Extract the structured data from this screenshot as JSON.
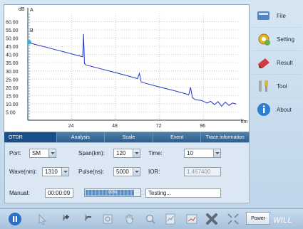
{
  "chart_data": {
    "type": "line",
    "ylabel": "dB",
    "xlabel": "km",
    "y_ticks": [
      "60.00",
      "55.00",
      "50.00",
      "45.00",
      "40.00",
      "35.00",
      "30.00",
      "25.00",
      "20.00",
      "15.00",
      "10.00",
      "5.00"
    ],
    "x_ticks": [
      "24",
      "48",
      "72",
      "96"
    ],
    "xlim": [
      0,
      115
    ],
    "ylim": [
      0,
      65
    ],
    "marker_labels": [
      "A",
      "B"
    ],
    "series": [
      {
        "values": [
          [
            0,
            47.5
          ],
          [
            2,
            46.8
          ],
          [
            5,
            45.9
          ],
          [
            10,
            44.5
          ],
          [
            15,
            43.0
          ],
          [
            20,
            41.6
          ],
          [
            24,
            40.4
          ],
          [
            28,
            39.2
          ],
          [
            30,
            38.6
          ],
          [
            30.5,
            52.5
          ],
          [
            31,
            34.5
          ],
          [
            32,
            33.5
          ],
          [
            34,
            33.0
          ],
          [
            40,
            31.3
          ],
          [
            48,
            29.0
          ],
          [
            56,
            26.6
          ],
          [
            60,
            25.3
          ],
          [
            61,
            28.5
          ],
          [
            62,
            23.4
          ],
          [
            64,
            22.6
          ],
          [
            70,
            20.8
          ],
          [
            78,
            18.6
          ],
          [
            86,
            16.2
          ],
          [
            88,
            15.5
          ],
          [
            89,
            20.0
          ],
          [
            90,
            13.6
          ],
          [
            92,
            12.4
          ],
          [
            95,
            12.0
          ],
          [
            97,
            11.0
          ],
          [
            98,
            10.5
          ],
          [
            100,
            11.5
          ],
          [
            102,
            9.5
          ],
          [
            104,
            11.3
          ],
          [
            106,
            8.5
          ],
          [
            108,
            11.0
          ],
          [
            110,
            9.0
          ],
          [
            112,
            10.5
          ],
          [
            114,
            9.8
          ]
        ]
      }
    ]
  },
  "sidebar": {
    "file": "File",
    "setting": "Setting",
    "result": "Result",
    "tool": "Tool",
    "about": "About"
  },
  "tabs": [
    "OTDR",
    "Analysis",
    "Scale",
    "Event",
    "Trace information"
  ],
  "settings": {
    "port_label": "Port:",
    "port_value": "SM",
    "span_label": "Span(km):",
    "span_value": "120",
    "time_label": "Time:",
    "time_value": "10",
    "wave_label": "Wave(nm):",
    "wave_value": "1310",
    "pulse_label": "Pulse(ns):",
    "pulse_value": "5000",
    "ior_label": "IOR:",
    "ior_value": "1.467400",
    "manual_label": "Manual:",
    "manual_value": "00:00:09",
    "progress_text": "90%",
    "progress": 0.9,
    "status": "Testing..."
  },
  "toolbar": {
    "power_label": "Power",
    "brand": "WILL"
  },
  "colors": {
    "trace": "#2233cc",
    "marker": "#29b3e0",
    "tab_bg": "#2f5f8d"
  }
}
